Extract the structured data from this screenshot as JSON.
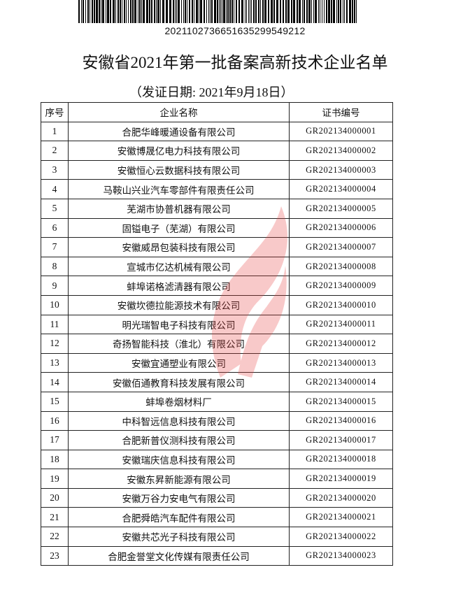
{
  "document": {
    "barcode_number": "2021102736651635299549212",
    "title": "安徽省2021年第一批备案高新技术企业名单",
    "subtitle": "（发证日期: 2021年9月18日）",
    "watermark_color": "#e8423f"
  },
  "table": {
    "headers": [
      "序号",
      "企业名称",
      "证书编号"
    ],
    "rows": [
      [
        "1",
        "合肥华峰暖通设备有限公司",
        "GR202134000001"
      ],
      [
        "2",
        "安徽博晟亿电力科技有限公司",
        "GR202134000002"
      ],
      [
        "3",
        "安徽恒心云数据科技有限公司",
        "GR202134000003"
      ],
      [
        "4",
        "马鞍山兴业汽车零部件有限责任公司",
        "GR202134000004"
      ],
      [
        "5",
        "芜湖市协普机器有限公司",
        "GR202134000005"
      ],
      [
        "6",
        "固镒电子（芜湖）有限公司",
        "GR202134000006"
      ],
      [
        "7",
        "安徽威昂包装科技有限公司",
        "GR202134000007"
      ],
      [
        "8",
        "宣城市亿达机械有限公司",
        "GR202134000008"
      ],
      [
        "9",
        "蚌埠诺格滤清器有限公司",
        "GR202134000009"
      ],
      [
        "10",
        "安徽坎德拉能源技术有限公司",
        "GR202134000010"
      ],
      [
        "11",
        "明光瑞智电子科技有限公司",
        "GR202134000011"
      ],
      [
        "12",
        "奇扬智能科技（淮北）有限公司",
        "GR202134000012"
      ],
      [
        "13",
        "安徽宜通塑业有限公司",
        "GR202134000013"
      ],
      [
        "14",
        "安徽佰通教育科技发展有限公司",
        "GR202134000014"
      ],
      [
        "15",
        "蚌埠卷烟材料厂",
        "GR202134000015"
      ],
      [
        "16",
        "中科智远信息科技有限公司",
        "GR202134000016"
      ],
      [
        "17",
        "合肥新普仪测科技有限公司",
        "GR202134000017"
      ],
      [
        "18",
        "安徽瑞庆信息科技有限公司",
        "GR202134000018"
      ],
      [
        "19",
        "安徽东昇新能源有限公司",
        "GR202134000019"
      ],
      [
        "20",
        "安徽万谷力安电气有限公司",
        "GR202134000020"
      ],
      [
        "21",
        "合肥舜皓汽车配件有限公司",
        "GR202134000021"
      ],
      [
        "22",
        "安徽共芯光子科技有限公司",
        "GR202134000022"
      ],
      [
        "23",
        "合肥金誉堂文化传媒有限责任公司",
        "GR202134000023"
      ]
    ]
  }
}
